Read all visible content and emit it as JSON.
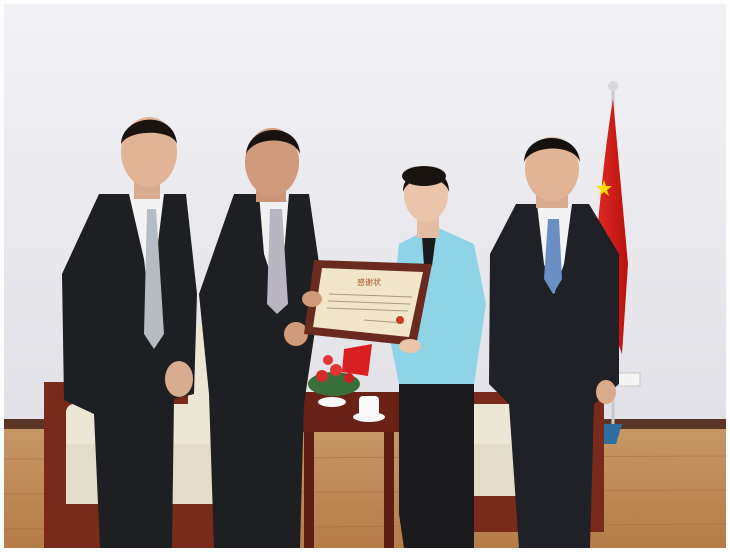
{
  "photo": {
    "subject": "certificate-presentation",
    "certificate_heading": "感谢状",
    "people_count": 4,
    "colors": {
      "wall": "#e9e9ee",
      "floor": "#c28a55",
      "flag_red": "#d81e1e",
      "suit_dark": "#1e1f22",
      "jacket_teal": "#8fd3e6",
      "sofa_cream": "#ece6d4",
      "wood": "#7a2a1a"
    }
  }
}
